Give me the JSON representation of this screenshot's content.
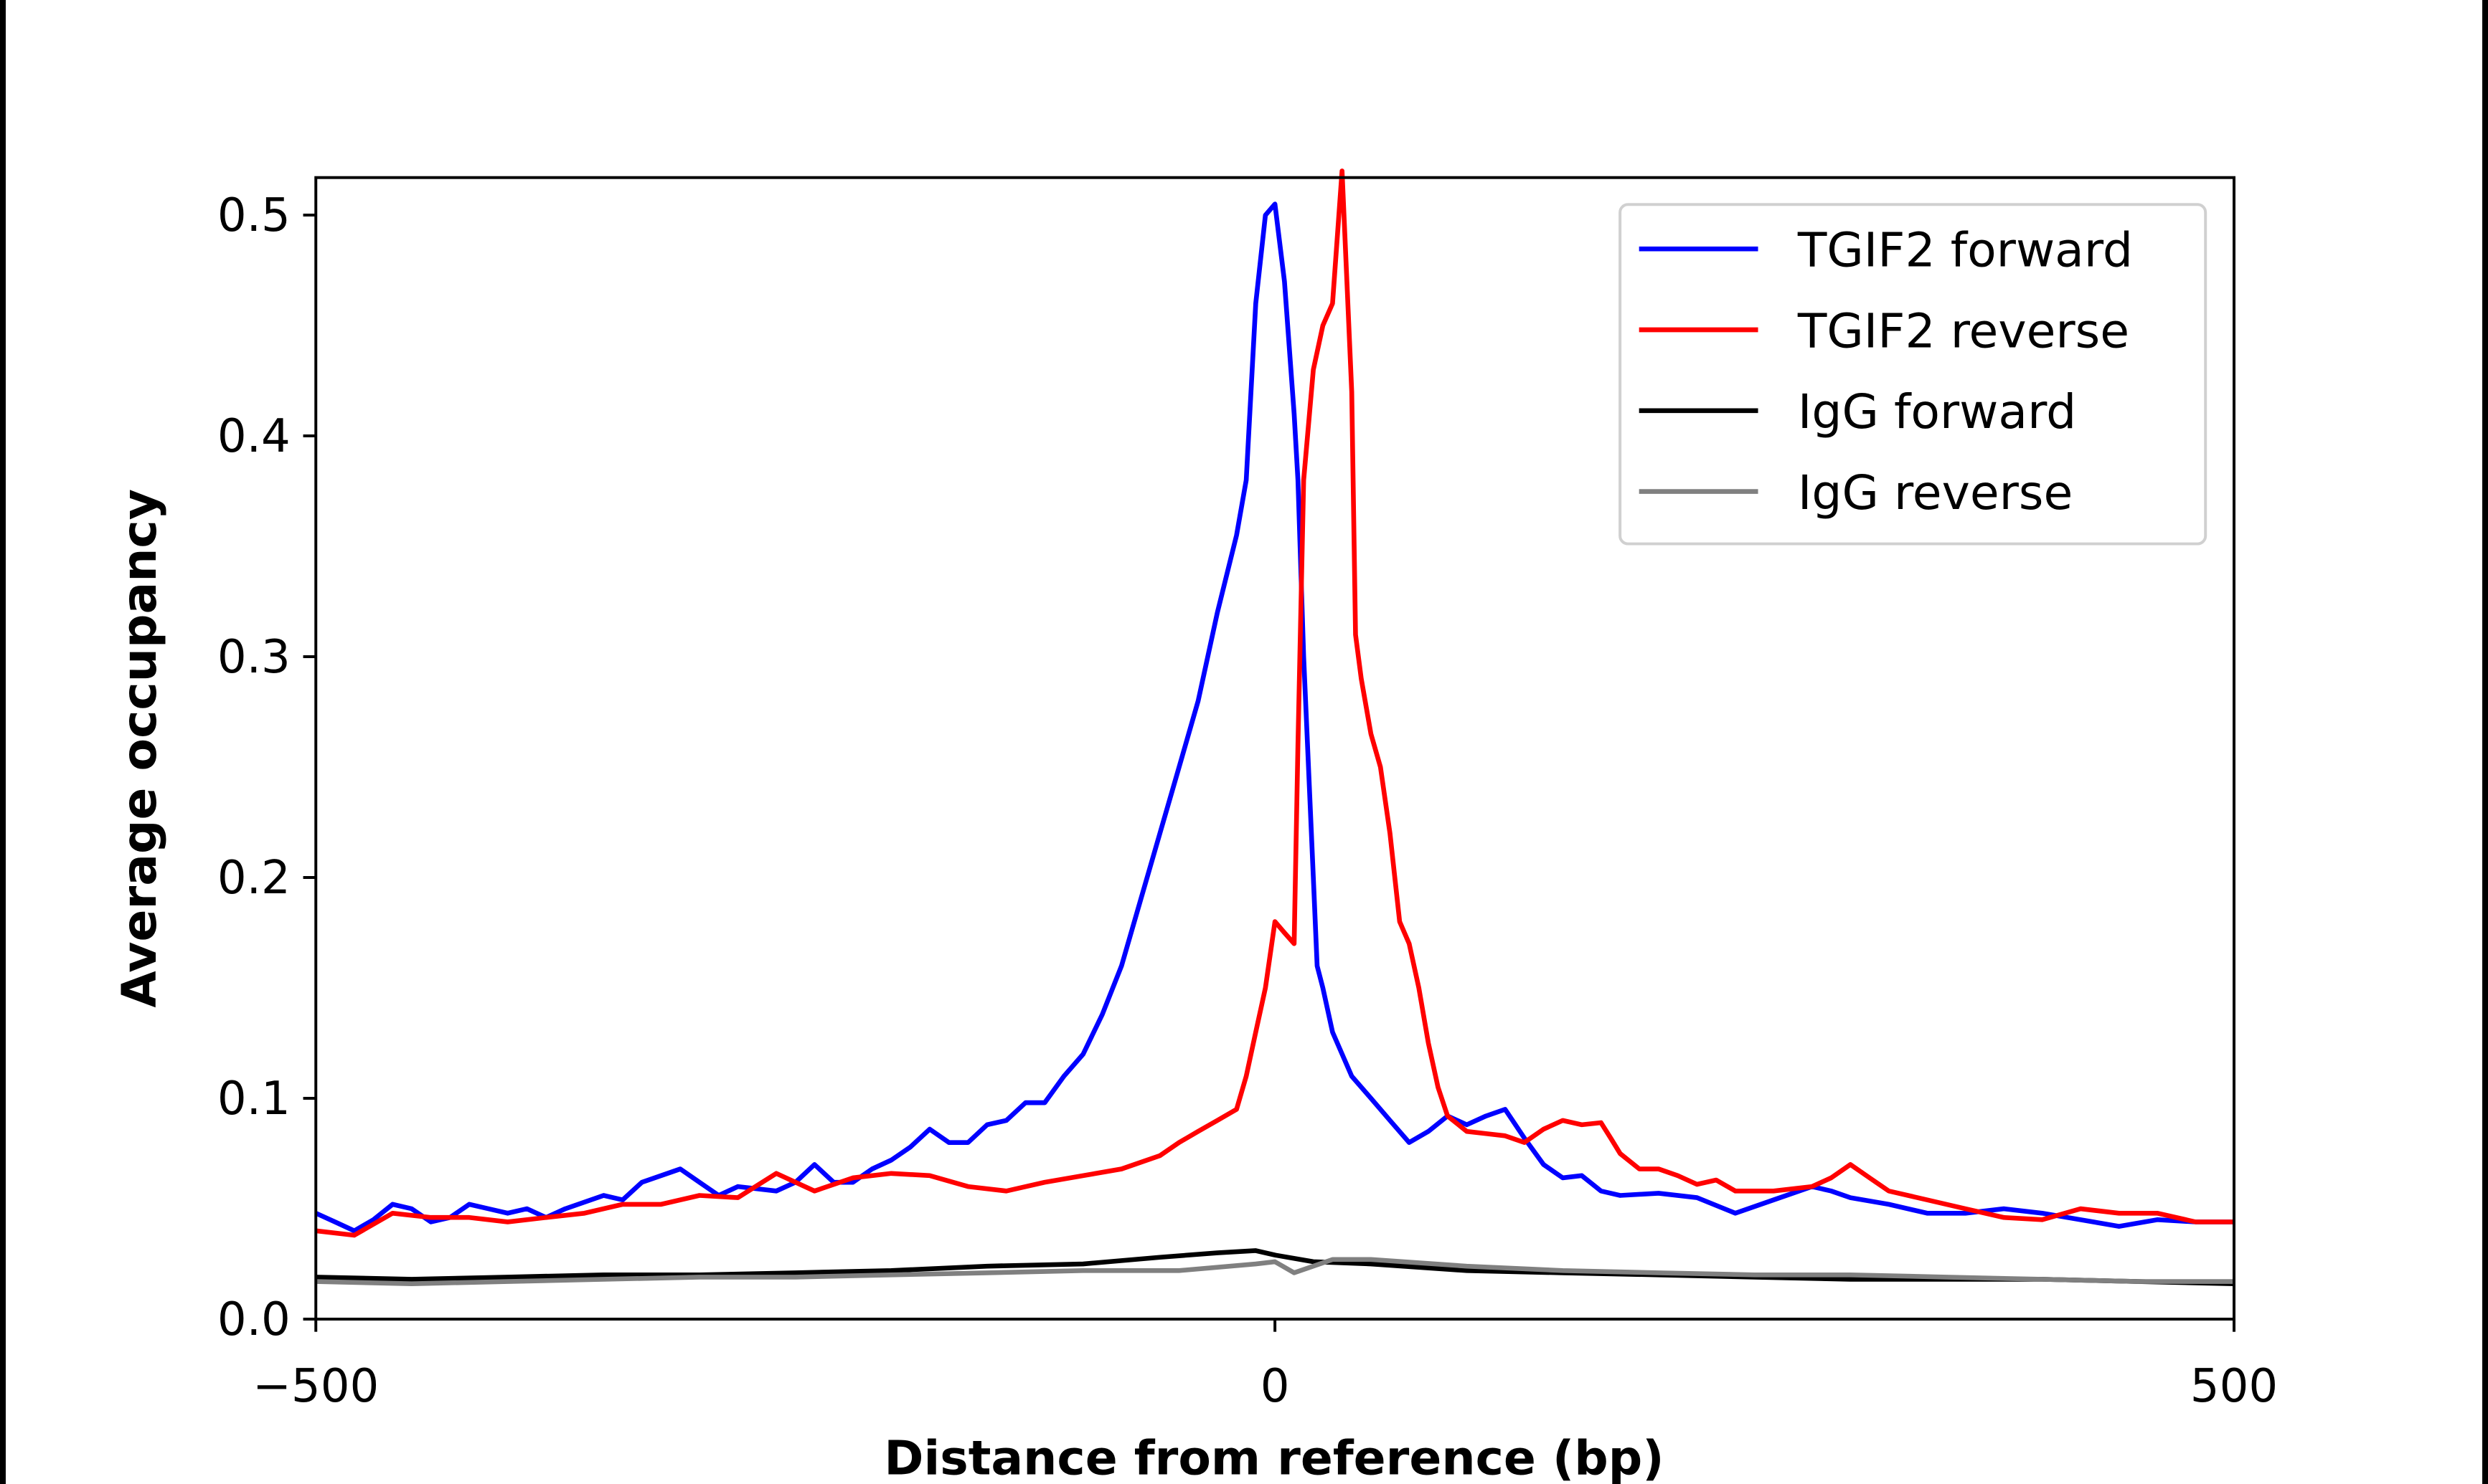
{
  "chart_data": {
    "type": "line",
    "title": "",
    "xlabel": "Distance from reference (bp)",
    "ylabel": "Average occupancy",
    "xlim": [
      -500,
      500
    ],
    "ylim": [
      0,
      0.517
    ],
    "xticks": [
      -500,
      0,
      500
    ],
    "xtick_labels": [
      "−500",
      "0",
      "500"
    ],
    "yticks": [
      0.0,
      0.1,
      0.2,
      0.3,
      0.4,
      0.5
    ],
    "ytick_labels": [
      "0.0",
      "0.1",
      "0.2",
      "0.3",
      "0.4",
      "0.5"
    ],
    "grid": false,
    "legend_placement": "top-right",
    "series": [
      {
        "name": "TGIF2 forward",
        "color": "#0000ff",
        "x": [
          -500,
          -490,
          -480,
          -470,
          -460,
          -450,
          -440,
          -430,
          -420,
          -410,
          -400,
          -390,
          -380,
          -370,
          -350,
          -340,
          -330,
          -310,
          -300,
          -290,
          -280,
          -260,
          -250,
          -240,
          -230,
          -220,
          -210,
          -200,
          -190,
          -180,
          -170,
          -160,
          -150,
          -140,
          -130,
          -120,
          -110,
          -100,
          -90,
          -80,
          -70,
          -60,
          -50,
          -40,
          -30,
          -20,
          -15,
          -10,
          -5,
          0,
          5,
          10,
          12,
          15,
          20,
          22,
          25,
          30,
          40,
          50,
          60,
          70,
          80,
          90,
          100,
          110,
          120,
          130,
          140,
          150,
          160,
          170,
          180,
          200,
          220,
          240,
          260,
          280,
          290,
          300,
          320,
          340,
          360,
          380,
          400,
          420,
          440,
          460,
          480,
          500
        ],
        "y": [
          0.048,
          0.044,
          0.04,
          0.045,
          0.052,
          0.05,
          0.044,
          0.046,
          0.052,
          0.05,
          0.048,
          0.05,
          0.046,
          0.05,
          0.056,
          0.054,
          0.062,
          0.068,
          0.062,
          0.056,
          0.06,
          0.058,
          0.062,
          0.07,
          0.062,
          0.062,
          0.068,
          0.072,
          0.078,
          0.086,
          0.08,
          0.08,
          0.088,
          0.09,
          0.098,
          0.098,
          0.11,
          0.12,
          0.138,
          0.16,
          0.19,
          0.22,
          0.25,
          0.28,
          0.32,
          0.355,
          0.38,
          0.46,
          0.5,
          0.505,
          0.47,
          0.41,
          0.38,
          0.3,
          0.2,
          0.16,
          0.15,
          0.13,
          0.11,
          0.1,
          0.09,
          0.08,
          0.085,
          0.092,
          0.088,
          0.092,
          0.095,
          0.082,
          0.07,
          0.064,
          0.065,
          0.058,
          0.056,
          0.057,
          0.055,
          0.048,
          0.054,
          0.06,
          0.058,
          0.055,
          0.052,
          0.048,
          0.048,
          0.05,
          0.048,
          0.045,
          0.042,
          0.045,
          0.044,
          0.044
        ]
      },
      {
        "name": "TGIF2 reverse",
        "color": "#ff0000",
        "x": [
          -500,
          -480,
          -460,
          -440,
          -420,
          -400,
          -380,
          -360,
          -340,
          -320,
          -300,
          -280,
          -260,
          -240,
          -220,
          -200,
          -180,
          -160,
          -140,
          -120,
          -100,
          -80,
          -60,
          -50,
          -40,
          -30,
          -20,
          -15,
          -10,
          -5,
          0,
          5,
          10,
          12,
          15,
          20,
          25,
          30,
          35,
          40,
          42,
          45,
          50,
          55,
          60,
          65,
          70,
          75,
          80,
          85,
          90,
          100,
          110,
          120,
          130,
          140,
          150,
          160,
          170,
          175,
          180,
          190,
          200,
          210,
          220,
          230,
          240,
          260,
          280,
          290,
          300,
          310,
          320,
          340,
          360,
          380,
          400,
          420,
          440,
          460,
          480,
          500
        ],
        "y": [
          0.04,
          0.038,
          0.048,
          0.046,
          0.046,
          0.044,
          0.046,
          0.048,
          0.052,
          0.052,
          0.056,
          0.055,
          0.066,
          0.058,
          0.064,
          0.066,
          0.065,
          0.06,
          0.058,
          0.062,
          0.065,
          0.068,
          0.074,
          0.08,
          0.085,
          0.09,
          0.095,
          0.11,
          0.13,
          0.15,
          0.18,
          0.175,
          0.17,
          0.26,
          0.38,
          0.43,
          0.45,
          0.46,
          0.52,
          0.42,
          0.31,
          0.29,
          0.265,
          0.25,
          0.22,
          0.18,
          0.17,
          0.15,
          0.125,
          0.105,
          0.092,
          0.085,
          0.084,
          0.083,
          0.08,
          0.086,
          0.09,
          0.088,
          0.089,
          0.082,
          0.075,
          0.068,
          0.068,
          0.065,
          0.061,
          0.063,
          0.058,
          0.058,
          0.06,
          0.064,
          0.07,
          0.064,
          0.058,
          0.054,
          0.05,
          0.046,
          0.045,
          0.05,
          0.048,
          0.048,
          0.044,
          0.044
        ]
      },
      {
        "name": "IgG forward",
        "color": "#000000",
        "x": [
          -500,
          -450,
          -400,
          -350,
          -300,
          -250,
          -200,
          -150,
          -100,
          -60,
          -30,
          -10,
          0,
          20,
          50,
          100,
          150,
          200,
          250,
          300,
          350,
          400,
          450,
          500
        ],
        "y": [
          0.019,
          0.018,
          0.019,
          0.02,
          0.02,
          0.021,
          0.022,
          0.024,
          0.025,
          0.028,
          0.03,
          0.031,
          0.029,
          0.026,
          0.025,
          0.022,
          0.021,
          0.02,
          0.019,
          0.018,
          0.018,
          0.018,
          0.017,
          0.016
        ]
      },
      {
        "name": "IgG reverse",
        "color": "#808080",
        "x": [
          -500,
          -450,
          -400,
          -350,
          -300,
          -250,
          -200,
          -150,
          -100,
          -50,
          -10,
          0,
          10,
          20,
          30,
          50,
          100,
          150,
          200,
          250,
          300,
          350,
          400,
          450,
          500
        ],
        "y": [
          0.017,
          0.016,
          0.017,
          0.018,
          0.019,
          0.019,
          0.02,
          0.021,
          0.022,
          0.022,
          0.025,
          0.026,
          0.021,
          0.024,
          0.027,
          0.027,
          0.024,
          0.022,
          0.021,
          0.02,
          0.02,
          0.019,
          0.018,
          0.017,
          0.017
        ]
      }
    ]
  }
}
